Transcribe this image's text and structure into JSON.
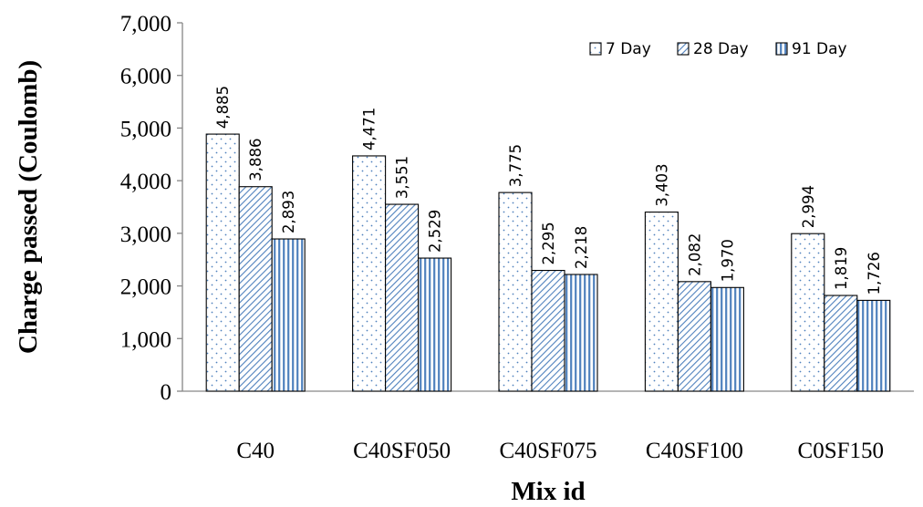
{
  "chart_data": {
    "type": "bar",
    "categories": [
      "C40",
      "C40SF050",
      "C40SF075",
      "C40SF100",
      "C0SF150"
    ],
    "series": [
      {
        "name": "7 Day",
        "values": [
          4885,
          4471,
          3775,
          3403,
          2994
        ],
        "labels": [
          "4,885",
          "4,471",
          "3,775",
          "3,403",
          "2,994"
        ],
        "pattern": "dots"
      },
      {
        "name": "28 Day",
        "values": [
          3886,
          3551,
          2295,
          2082,
          1819
        ],
        "labels": [
          "3,886",
          "3,551",
          "2,295",
          "2,082",
          "1,819"
        ],
        "pattern": "diagonal-hatch"
      },
      {
        "name": "91 Day",
        "values": [
          2893,
          2529,
          2218,
          1970,
          1726
        ],
        "labels": [
          "2,893",
          "2,529",
          "2,218",
          "1,970",
          "1,726"
        ],
        "pattern": "vertical-stripes"
      }
    ],
    "xlabel": "Mix id",
    "ylabel": "Charge passed (Coulomb)",
    "ylim": [
      0,
      7000
    ],
    "yticks": [
      0,
      1000,
      2000,
      3000,
      4000,
      5000,
      6000,
      7000
    ],
    "ytick_labels": [
      "0",
      "1,000",
      "2,000",
      "3,000",
      "4,000",
      "5,000",
      "6,000",
      "7,000"
    ],
    "grid": false,
    "legend_position": "top-right",
    "colors": {
      "bar_edge": "#000000",
      "pattern_fill": "#4f81bd",
      "axis": "#868686"
    }
  }
}
